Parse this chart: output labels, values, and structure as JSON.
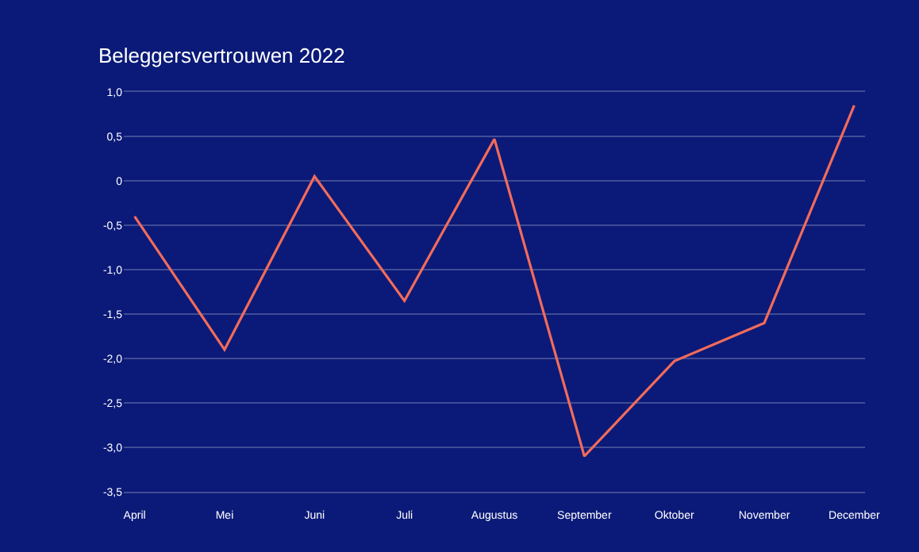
{
  "chart_data": {
    "type": "line",
    "title": "Beleggersvertrouwen 2022",
    "categories": [
      "April",
      "Mei",
      "Juni",
      "Juli",
      "Augustus",
      "September",
      "Oktober",
      "November",
      "December"
    ],
    "series": [
      {
        "color": "#f26b5b",
        "values": [
          -0.4,
          -1.9,
          0.05,
          -1.35,
          0.47,
          -3.1,
          -2.03,
          -1.6,
          0.85
        ]
      }
    ],
    "ylim": [
      -3.5,
      1.0
    ],
    "yticks": [
      {
        "value": 1.0,
        "label": "1,0"
      },
      {
        "value": 0.5,
        "label": "0,5"
      },
      {
        "value": 0,
        "label": "0"
      },
      {
        "value": -0.5,
        "label": "-0,5"
      },
      {
        "value": -1.0,
        "label": "-1,0"
      },
      {
        "value": -1.5,
        "label": "-1,5"
      },
      {
        "value": -2.0,
        "label": "-2,0"
      },
      {
        "value": -2.5,
        "label": "-2,5"
      },
      {
        "value": -3.0,
        "label": "-3,0"
      },
      {
        "value": -3.5,
        "label": "-3,5"
      }
    ],
    "grid": "y",
    "marker": "none",
    "line_style": "solid"
  }
}
